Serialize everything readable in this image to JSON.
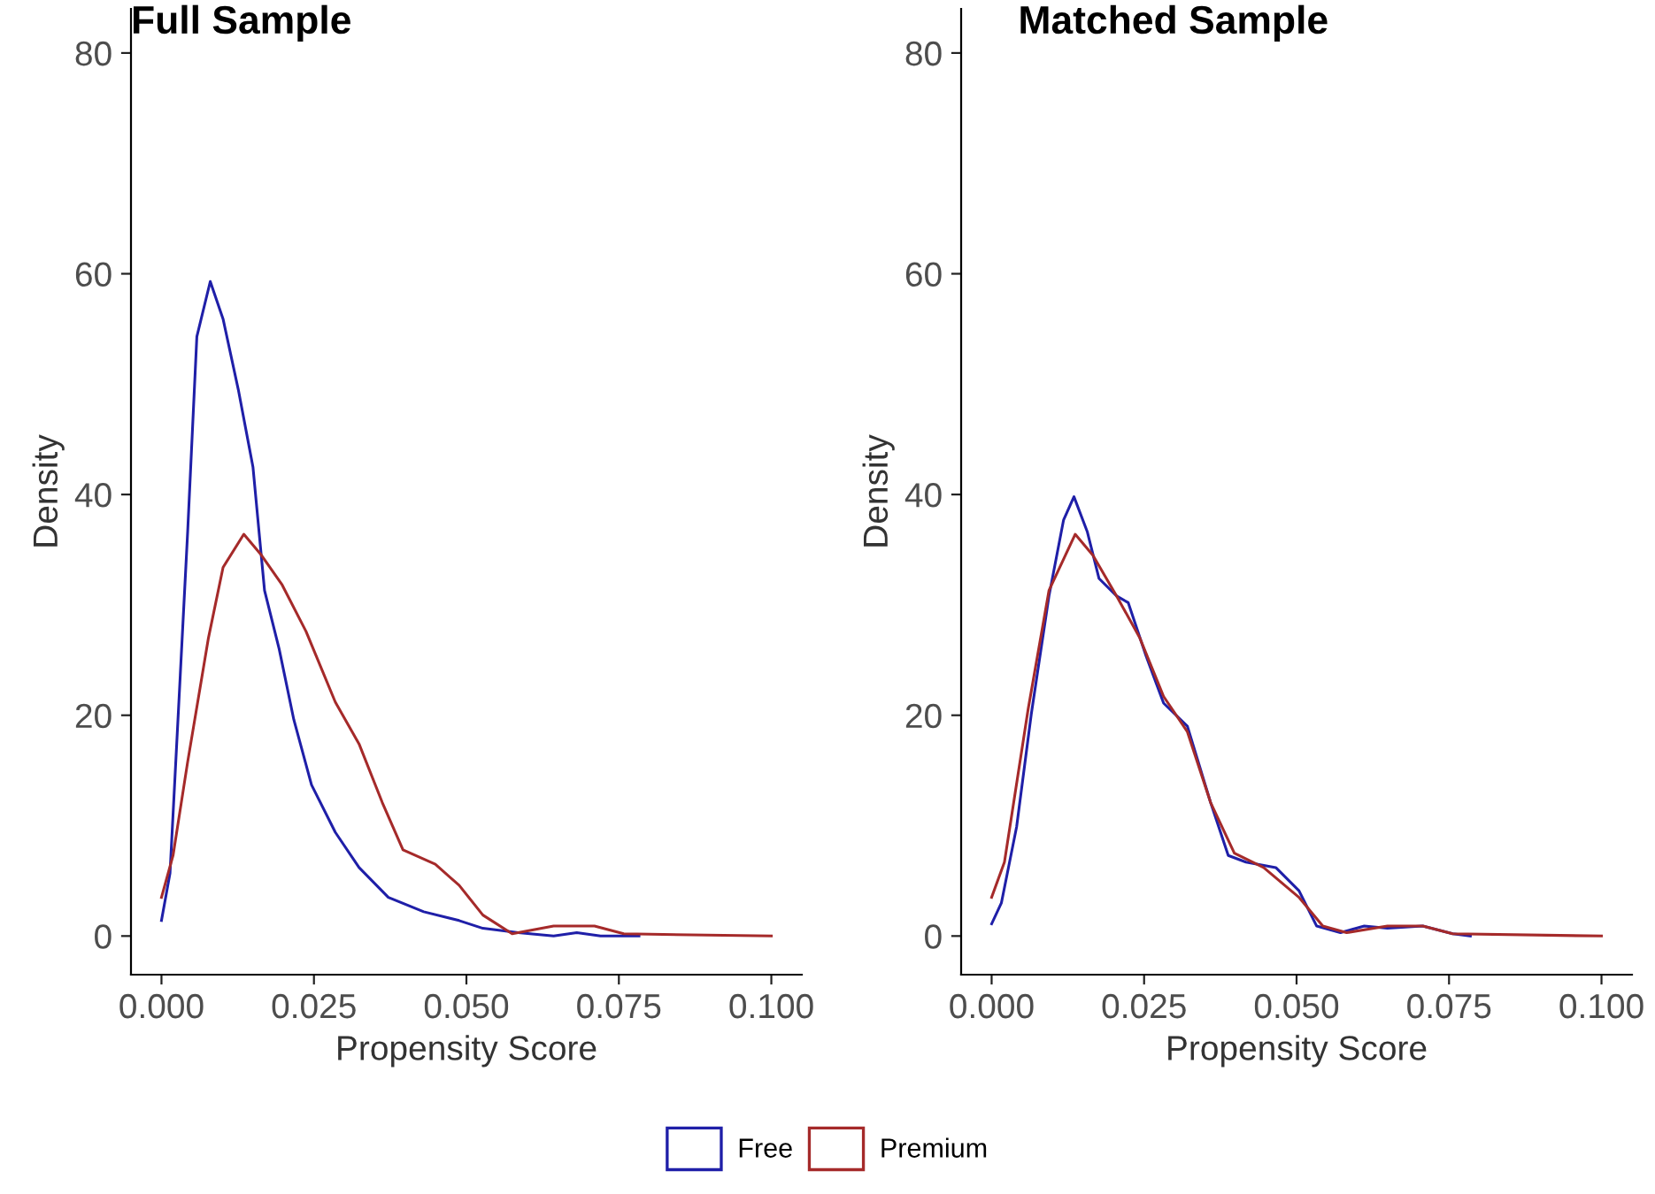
{
  "chart_data": [
    {
      "type": "line",
      "title": "Full Sample",
      "xlabel": "Propensity Score",
      "ylabel": "Density",
      "xlim": [
        -0.005,
        0.105
      ],
      "ylim": [
        -3.5,
        84
      ],
      "xticks": [
        {
          "value": 0,
          "label": "0.000"
        },
        {
          "value": 0.025,
          "label": "0.025"
        },
        {
          "value": 0.05,
          "label": "0.050"
        },
        {
          "value": 0.075,
          "label": "0.075"
        },
        {
          "value": 0.1,
          "label": "0.100"
        }
      ],
      "yticks": [
        0,
        20,
        40,
        60,
        80
      ],
      "grid": false,
      "legend": "bottom",
      "series": [
        {
          "name": "Free",
          "color": "#1f1fa8",
          "x": [
            0,
            0.0014,
            0.0029,
            0.0043,
            0.0058,
            0.008,
            0.0101,
            0.0126,
            0.015,
            0.0169,
            0.0193,
            0.0217,
            0.0246,
            0.0285,
            0.0324,
            0.0372,
            0.043,
            0.0488,
            0.0527,
            0.0585,
            0.0643,
            0.0681,
            0.072,
            0.0783
          ],
          "values": [
            1.4,
            5.7,
            21.7,
            36.7,
            54.3,
            59.3,
            55.9,
            49.5,
            42.5,
            31.3,
            26,
            19.6,
            13.7,
            9.4,
            6.2,
            3.5,
            2.2,
            1.4,
            0.7,
            0.3,
            0,
            0.3,
            0,
            0
          ]
        },
        {
          "name": "Premium",
          "color": "#a52a2a",
          "x": [
            0,
            0.0019,
            0.0043,
            0.0077,
            0.0101,
            0.0135,
            0.0164,
            0.0198,
            0.0237,
            0.0285,
            0.0324,
            0.0362,
            0.0396,
            0.0449,
            0.0488,
            0.0527,
            0.0575,
            0.0643,
            0.071,
            0.0758,
            0.1
          ],
          "values": [
            3.5,
            7.3,
            15.8,
            27,
            33.4,
            36.4,
            34.5,
            31.8,
            27.6,
            21.2,
            17.4,
            12.1,
            7.8,
            6.5,
            4.6,
            1.9,
            0.2,
            0.9,
            0.9,
            0.2,
            0
          ]
        }
      ]
    },
    {
      "type": "line",
      "title": "Matched Sample",
      "xlabel": "Propensity Score",
      "ylabel": "Density",
      "xlim": [
        -0.005,
        0.105
      ],
      "ylim": [
        -3.5,
        84
      ],
      "xticks": [
        {
          "value": 0,
          "label": "0.000"
        },
        {
          "value": 0.025,
          "label": "0.025"
        },
        {
          "value": 0.05,
          "label": "0.050"
        },
        {
          "value": 0.075,
          "label": "0.075"
        },
        {
          "value": 0.1,
          "label": "0.100"
        }
      ],
      "yticks": [
        0,
        20,
        40,
        60,
        80
      ],
      "grid": false,
      "series": [
        {
          "color": "#1f1fa8",
          "x": [
            0,
            0.0016,
            0.0041,
            0.0065,
            0.0094,
            0.0118,
            0.0135,
            0.0157,
            0.0176,
            0.0205,
            0.0224,
            0.0253,
            0.0282,
            0.0321,
            0.0359,
            0.0388,
            0.0417,
            0.0466,
            0.0504,
            0.0533,
            0.0572,
            0.0611,
            0.0649,
            0.0707,
            0.0756,
            0.0785
          ],
          "values": [
            1.1,
            3,
            9.9,
            20.1,
            30.8,
            37.7,
            39.8,
            36.6,
            32.4,
            30.8,
            30.2,
            25.4,
            21.1,
            19,
            12.1,
            7.3,
            6.7,
            6.2,
            4.1,
            0.9,
            0.3,
            0.9,
            0.7,
            0.9,
            0.2,
            0
          ]
        },
        {
          "color": "#a52a2a",
          "x": [
            0,
            0.0021,
            0.006,
            0.0094,
            0.0137,
            0.0166,
            0.0205,
            0.0243,
            0.0282,
            0.0321,
            0.0359,
            0.0398,
            0.0446,
            0.0504,
            0.0543,
            0.0582,
            0.0649,
            0.0707,
            0.0756,
            0.1
          ],
          "values": [
            3.5,
            6.7,
            20.6,
            31.3,
            36.4,
            34.5,
            30.8,
            27,
            21.7,
            18.5,
            12.1,
            7.5,
            6.2,
            3.5,
            0.9,
            0.3,
            0.9,
            0.9,
            0.2,
            0
          ]
        }
      ]
    }
  ]
}
